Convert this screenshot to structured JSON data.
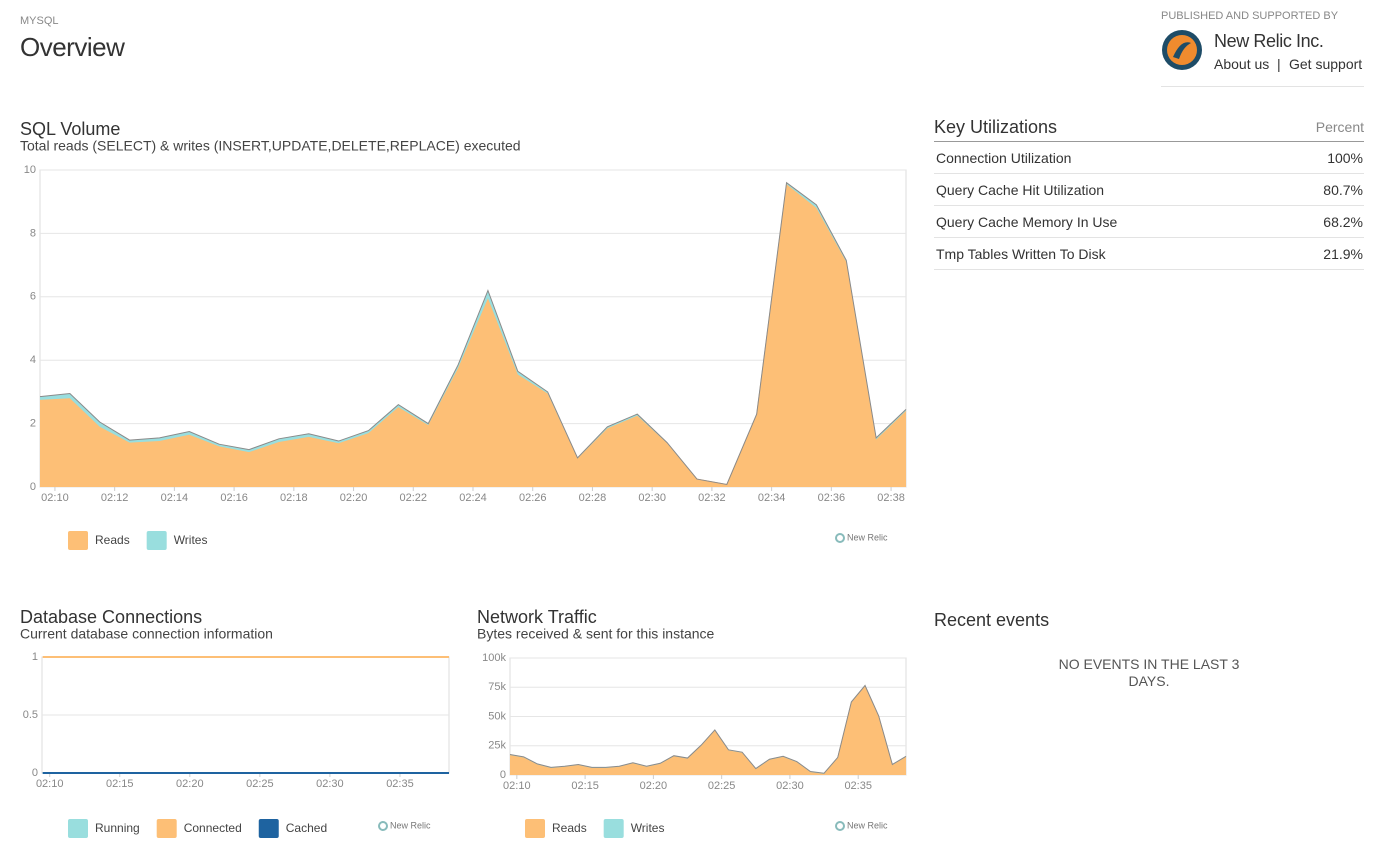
{
  "header": {
    "category": "MYSQL",
    "title": "Overview"
  },
  "publisher": {
    "caption": "PUBLISHED AND SUPPORTED BY",
    "name": "New Relic Inc.",
    "links": [
      "About us",
      "|",
      "Get support"
    ]
  },
  "chart_data": [
    {
      "type": "area",
      "stacked": true,
      "title": "SQL Volume",
      "subtitle": "Total reads (SELECT) & writes (INSERT,UPDATE,DELETE,REPLACE) executed",
      "watermark": "New Relic",
      "x": [
        9.5,
        10.5,
        11.5,
        12.5,
        13.5,
        14.5,
        15.5,
        16.5,
        17.5,
        18.5,
        19.5,
        20.5,
        21.5,
        22.5,
        23.5,
        24.5,
        25.5,
        26.5,
        27.5,
        28.5,
        29.5,
        30.5,
        31.5,
        32.5,
        33.5,
        34.5,
        35.5,
        36.5,
        37.5,
        38.5
      ],
      "xlim": [
        9.5,
        38.5
      ],
      "xticks": [
        {
          "value": 10,
          "label": "02:10"
        },
        {
          "value": 12,
          "label": "02:12"
        },
        {
          "value": 14,
          "label": "02:14"
        },
        {
          "value": 16,
          "label": "02:16"
        },
        {
          "value": 18,
          "label": "02:18"
        },
        {
          "value": 20,
          "label": "02:20"
        },
        {
          "value": 22,
          "label": "02:22"
        },
        {
          "value": 24,
          "label": "02:24"
        },
        {
          "value": 26,
          "label": "02:26"
        },
        {
          "value": 28,
          "label": "02:28"
        },
        {
          "value": 30,
          "label": "02:30"
        },
        {
          "value": 32,
          "label": "02:32"
        },
        {
          "value": 34,
          "label": "02:34"
        },
        {
          "value": 36,
          "label": "02:36"
        },
        {
          "value": 38,
          "label": "02:38"
        }
      ],
      "ylim": [
        0,
        10
      ],
      "yticks": [
        0,
        2,
        4,
        6,
        8,
        10
      ],
      "grid": true,
      "series": [
        {
          "name": "Reads",
          "color": "#fdbf76",
          "values": [
            2.75,
            2.8,
            1.9,
            1.4,
            1.45,
            1.65,
            1.28,
            1.1,
            1.42,
            1.58,
            1.38,
            1.7,
            2.52,
            1.95,
            3.75,
            5.95,
            3.55,
            2.95,
            0.9,
            1.85,
            2.25,
            1.38,
            0.25,
            0.08,
            2.28,
            9.55,
            8.8,
            7.1,
            1.5,
            2.4
          ]
        },
        {
          "name": "Writes",
          "color": "#99dede",
          "values": [
            0.1,
            0.15,
            0.15,
            0.08,
            0.1,
            0.1,
            0.07,
            0.08,
            0.1,
            0.1,
            0.07,
            0.08,
            0.08,
            0.05,
            0.1,
            0.25,
            0.1,
            0.05,
            0.02,
            0.05,
            0.05,
            0.02,
            0,
            0,
            0.02,
            0.05,
            0.1,
            0.05,
            0.05,
            0.05
          ]
        }
      ]
    },
    {
      "type": "line",
      "title": "Database Connections",
      "subtitle": "Current database connection information",
      "watermark": "New Relic",
      "x": [
        9.5,
        10.5,
        11.5,
        12.5,
        13.5,
        14.5,
        15.5,
        16.5,
        17.5,
        18.5,
        19.5,
        20.5,
        21.5,
        22.5,
        23.5,
        24.5,
        25.5,
        26.5,
        27.5,
        28.5,
        29.5,
        30.5,
        31.5,
        32.5,
        33.5,
        34.5,
        35.5,
        36.5,
        37.5,
        38.5
      ],
      "xlim": [
        9.45,
        38.5
      ],
      "xticks": [
        {
          "value": 10,
          "label": "02:10"
        },
        {
          "value": 15,
          "label": "02:15"
        },
        {
          "value": 20,
          "label": "02:20"
        },
        {
          "value": 25,
          "label": "02:25"
        },
        {
          "value": 30,
          "label": "02:30"
        },
        {
          "value": 35,
          "label": "02:35"
        }
      ],
      "ylim": [
        0,
        1
      ],
      "yticks": [
        0,
        0.5,
        1
      ],
      "grid": true,
      "series": [
        {
          "name": "Running",
          "color": "#99dede",
          "values": [
            0,
            0,
            0,
            0,
            0,
            0,
            0,
            0,
            0,
            0,
            0,
            0,
            0,
            0,
            0,
            0,
            0,
            0,
            0,
            0,
            0,
            0,
            0,
            0,
            0,
            0,
            0,
            0,
            0,
            0
          ]
        },
        {
          "name": "Connected",
          "color": "#fdbf76",
          "values": [
            1,
            1,
            1,
            1,
            1,
            1,
            1,
            1,
            1,
            1,
            1,
            1,
            1,
            1,
            1,
            1,
            1,
            1,
            1,
            1,
            1,
            1,
            1,
            1,
            1,
            1,
            1,
            1,
            1,
            1
          ]
        },
        {
          "name": "Cached",
          "color": "#1e63a0",
          "values": [
            0,
            0,
            0,
            0,
            0,
            0,
            0,
            0,
            0,
            0,
            0,
            0,
            0,
            0,
            0,
            0,
            0,
            0,
            0,
            0,
            0,
            0,
            0,
            0,
            0,
            0,
            0,
            0,
            0,
            0
          ]
        }
      ]
    },
    {
      "type": "area",
      "stacked": true,
      "title": "Network Traffic",
      "subtitle": "Bytes received & sent for this instance",
      "watermark": "New Relic",
      "x": [
        9.5,
        10.5,
        11.5,
        12.5,
        13.5,
        14.5,
        15.5,
        16.5,
        17.5,
        18.5,
        19.5,
        20.5,
        21.5,
        22.5,
        23.5,
        24.5,
        25.5,
        26.5,
        27.5,
        28.5,
        29.5,
        30.5,
        31.5,
        32.5,
        33.5,
        34.5,
        35.5,
        36.5,
        37.5,
        38.5
      ],
      "xlim": [
        9.5,
        38.5
      ],
      "xticks": [
        {
          "value": 10,
          "label": "02:10"
        },
        {
          "value": 15,
          "label": "02:15"
        },
        {
          "value": 20,
          "label": "02:20"
        },
        {
          "value": 25,
          "label": "02:25"
        },
        {
          "value": 30,
          "label": "02:30"
        },
        {
          "value": 35,
          "label": "02:35"
        }
      ],
      "ylim": [
        0,
        100000
      ],
      "yticks": [
        0,
        {
          "value": 25000,
          "label": "25k"
        },
        {
          "value": 50000,
          "label": "50k"
        },
        {
          "value": 75000,
          "label": "75k"
        },
        {
          "value": 100000,
          "label": "100k"
        }
      ],
      "grid": true,
      "series": [
        {
          "name": "Reads",
          "color": "#fdbf76",
          "values": [
            17000,
            15000,
            9000,
            6000,
            7000,
            8500,
            6000,
            6000,
            7000,
            10000,
            7000,
            9500,
            16000,
            14000,
            25000,
            38000,
            21000,
            19000,
            5000,
            13000,
            15500,
            11000,
            2500,
            1000,
            14500,
            62000,
            76000,
            50000,
            8500,
            15500
          ]
        },
        {
          "name": "Writes",
          "color": "#99dede",
          "values": [
            500,
            500,
            500,
            500,
            500,
            500,
            500,
            500,
            500,
            500,
            500,
            500,
            500,
            500,
            500,
            500,
            500,
            500,
            500,
            500,
            500,
            500,
            500,
            500,
            500,
            500,
            500,
            500,
            500,
            500
          ]
        }
      ]
    }
  ],
  "key_utilizations": {
    "title": "Key Utilizations",
    "unit_header": "Percent",
    "rows": [
      [
        "Connection Utilization",
        "100%"
      ],
      [
        "Query Cache Hit Utilization",
        "80.7%"
      ],
      [
        "Query Cache Memory In Use",
        "68.2%"
      ],
      [
        "Tmp Tables Written To Disk",
        "21.9%"
      ]
    ]
  },
  "recent_events": {
    "title": "Recent events",
    "message": "NO EVENTS IN THE LAST 3 DAYS."
  }
}
